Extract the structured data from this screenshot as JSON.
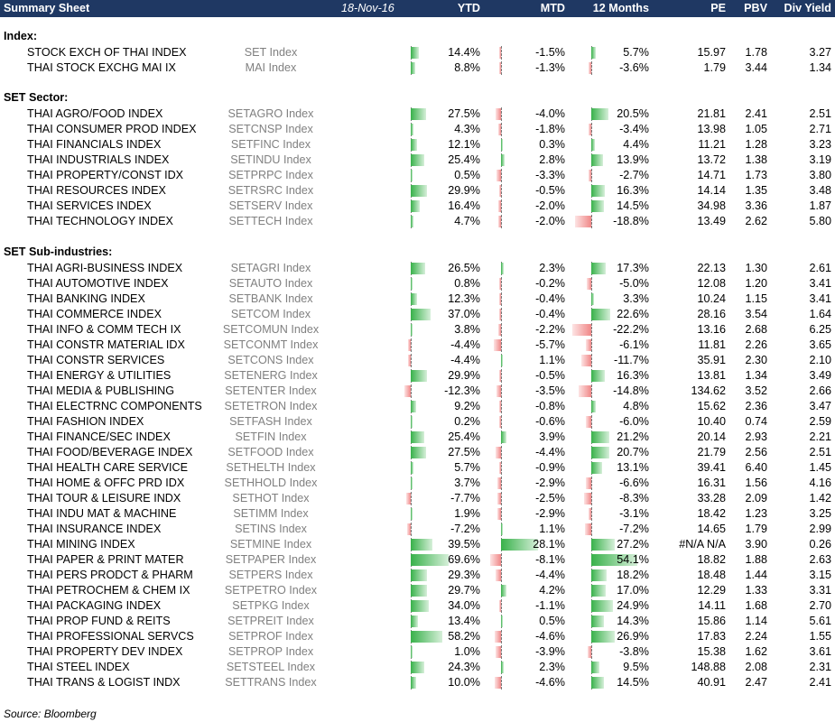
{
  "header": {
    "title": "Summary Sheet",
    "date": "18-Nov-16",
    "ytd": "YTD",
    "mtd": "MTD",
    "m12": "12 Months",
    "pe": "PE",
    "pbv": "PBV",
    "dy": "Div Yield"
  },
  "sections": [
    {
      "title": "Index:",
      "rows": [
        {
          "name": "STOCK EXCH OF THAI INDEX",
          "ticker": "SET Index",
          "ytd": "14.4%",
          "mtd": "-1.5%",
          "m12": "5.7%",
          "pe": "15.97",
          "pbv": "1.78",
          "dy": "3.27",
          "ytd_v": 14.4,
          "mtd_v": -1.5,
          "m12_v": 5.7
        },
        {
          "name": "THAI STOCK EXCHG MAI IX",
          "ticker": "MAI Index",
          "ytd": "8.8%",
          "mtd": "-1.3%",
          "m12": "-3.6%",
          "pe": "1.79",
          "pbv": "3.44",
          "dy": "1.34",
          "ytd_v": 8.8,
          "mtd_v": -1.3,
          "m12_v": -3.6
        }
      ]
    },
    {
      "title": "SET Sector:",
      "rows": [
        {
          "name": "THAI AGRO/FOOD INDEX",
          "ticker": "SETAGRO Index",
          "ytd": "27.5%",
          "mtd": "-4.0%",
          "m12": "20.5%",
          "pe": "21.81",
          "pbv": "2.41",
          "dy": "2.51",
          "ytd_v": 27.5,
          "mtd_v": -4.0,
          "m12_v": 20.5
        },
        {
          "name": "THAI CONSUMER PROD INDEX",
          "ticker": "SETCNSP Index",
          "ytd": "4.3%",
          "mtd": "-1.8%",
          "m12": "-3.4%",
          "pe": "13.98",
          "pbv": "1.05",
          "dy": "2.71",
          "ytd_v": 4.3,
          "mtd_v": -1.8,
          "m12_v": -3.4
        },
        {
          "name": "THAI FINANCIALS INDEX",
          "ticker": "SETFINC Index",
          "ytd": "12.1%",
          "mtd": "0.3%",
          "m12": "4.4%",
          "pe": "11.21",
          "pbv": "1.28",
          "dy": "3.23",
          "ytd_v": 12.1,
          "mtd_v": 0.3,
          "m12_v": 4.4
        },
        {
          "name": "THAI INDUSTRIALS INDEX",
          "ticker": "SETINDU Index",
          "ytd": "25.4%",
          "mtd": "2.8%",
          "m12": "13.9%",
          "pe": "13.72",
          "pbv": "1.38",
          "dy": "3.19",
          "ytd_v": 25.4,
          "mtd_v": 2.8,
          "m12_v": 13.9
        },
        {
          "name": "THAI PROPERTY/CONST IDX",
          "ticker": "SETPRPC Index",
          "ytd": "0.5%",
          "mtd": "-3.3%",
          "m12": "-2.7%",
          "pe": "14.71",
          "pbv": "1.73",
          "dy": "3.80",
          "ytd_v": 0.5,
          "mtd_v": -3.3,
          "m12_v": -2.7
        },
        {
          "name": "THAI RESOURCES INDEX",
          "ticker": "SETRSRC Index",
          "ytd": "29.9%",
          "mtd": "-0.5%",
          "m12": "16.3%",
          "pe": "14.14",
          "pbv": "1.35",
          "dy": "3.48",
          "ytd_v": 29.9,
          "mtd_v": -0.5,
          "m12_v": 16.3
        },
        {
          "name": "THAI SERVICES INDEX",
          "ticker": "SETSERV Index",
          "ytd": "16.4%",
          "mtd": "-2.0%",
          "m12": "14.5%",
          "pe": "34.98",
          "pbv": "3.36",
          "dy": "1.87",
          "ytd_v": 16.4,
          "mtd_v": -2.0,
          "m12_v": 14.5
        },
        {
          "name": "THAI TECHNOLOGY INDEX",
          "ticker": "SETTECH Index",
          "ytd": "4.7%",
          "mtd": "-2.0%",
          "m12": "-18.8%",
          "pe": "13.49",
          "pbv": "2.62",
          "dy": "5.80",
          "ytd_v": 4.7,
          "mtd_v": -2.0,
          "m12_v": -18.8
        }
      ]
    },
    {
      "title": "SET Sub-industries:",
      "rows": [
        {
          "name": "THAI AGRI-BUSINESS INDEX",
          "ticker": "SETAGRI Index",
          "ytd": "26.5%",
          "mtd": "2.3%",
          "m12": "17.3%",
          "pe": "22.13",
          "pbv": "1.30",
          "dy": "2.61",
          "ytd_v": 26.5,
          "mtd_v": 2.3,
          "m12_v": 17.3
        },
        {
          "name": "THAI AUTOMOTIVE INDEX",
          "ticker": "SETAUTO Index",
          "ytd": "0.8%",
          "mtd": "-0.2%",
          "m12": "-5.0%",
          "pe": "12.08",
          "pbv": "1.20",
          "dy": "3.41",
          "ytd_v": 0.8,
          "mtd_v": -0.2,
          "m12_v": -5.0
        },
        {
          "name": "THAI BANKING INDEX",
          "ticker": "SETBANK Index",
          "ytd": "12.3%",
          "mtd": "-0.4%",
          "m12": "3.3%",
          "pe": "10.24",
          "pbv": "1.15",
          "dy": "3.41",
          "ytd_v": 12.3,
          "mtd_v": -0.4,
          "m12_v": 3.3
        },
        {
          "name": "THAI COMMERCE INDEX",
          "ticker": "SETCOM Index",
          "ytd": "37.0%",
          "mtd": "-0.4%",
          "m12": "22.6%",
          "pe": "28.16",
          "pbv": "3.54",
          "dy": "1.64",
          "ytd_v": 37.0,
          "mtd_v": -0.4,
          "m12_v": 22.6
        },
        {
          "name": "THAI INFO & COMM TECH IX",
          "ticker": "SETCOMUN Index",
          "ytd": "3.8%",
          "mtd": "-2.2%",
          "m12": "-22.2%",
          "pe": "13.16",
          "pbv": "2.68",
          "dy": "6.25",
          "ytd_v": 3.8,
          "mtd_v": -2.2,
          "m12_v": -22.2
        },
        {
          "name": "THAI CONSTR MATERIAL IDX",
          "ticker": "SETCONMT Index",
          "ytd": "-4.4%",
          "mtd": "-5.7%",
          "m12": "-6.1%",
          "pe": "11.81",
          "pbv": "2.26",
          "dy": "3.65",
          "ytd_v": -4.4,
          "mtd_v": -5.7,
          "m12_v": -6.1
        },
        {
          "name": "THAI CONSTR SERVICES",
          "ticker": "SETCONS Index",
          "ytd": "-4.4%",
          "mtd": "1.1%",
          "m12": "-11.7%",
          "pe": "35.91",
          "pbv": "2.30",
          "dy": "2.10",
          "ytd_v": -4.4,
          "mtd_v": 1.1,
          "m12_v": -11.7
        },
        {
          "name": "THAI ENERGY & UTILITIES",
          "ticker": "SETENERG Index",
          "ytd": "29.9%",
          "mtd": "-0.5%",
          "m12": "16.3%",
          "pe": "13.81",
          "pbv": "1.34",
          "dy": "3.49",
          "ytd_v": 29.9,
          "mtd_v": -0.5,
          "m12_v": 16.3
        },
        {
          "name": "THAI MEDIA & PUBLISHING",
          "ticker": "SETENTER Index",
          "ytd": "-12.3%",
          "mtd": "-3.5%",
          "m12": "-14.8%",
          "pe": "134.62",
          "pbv": "3.52",
          "dy": "2.66",
          "ytd_v": -12.3,
          "mtd_v": -3.5,
          "m12_v": -14.8
        },
        {
          "name": "THAI ELECTRNC COMPONENTS",
          "ticker": "SETETRON Index",
          "ytd": "9.2%",
          "mtd": "-0.8%",
          "m12": "4.8%",
          "pe": "15.62",
          "pbv": "2.36",
          "dy": "3.47",
          "ytd_v": 9.2,
          "mtd_v": -0.8,
          "m12_v": 4.8
        },
        {
          "name": "THAI FASHION INDEX",
          "ticker": "SETFASH Index",
          "ytd": "0.2%",
          "mtd": "-0.6%",
          "m12": "-6.0%",
          "pe": "10.40",
          "pbv": "0.74",
          "dy": "2.59",
          "ytd_v": 0.2,
          "mtd_v": -0.6,
          "m12_v": -6.0
        },
        {
          "name": "THAI FINANCE/SEC INDEX",
          "ticker": "SETFIN Index",
          "ytd": "25.4%",
          "mtd": "3.9%",
          "m12": "21.2%",
          "pe": "20.14",
          "pbv": "2.93",
          "dy": "2.21",
          "ytd_v": 25.4,
          "mtd_v": 3.9,
          "m12_v": 21.2
        },
        {
          "name": "THAI FOOD/BEVERAGE INDEX",
          "ticker": "SETFOOD Index",
          "ytd": "27.5%",
          "mtd": "-4.4%",
          "m12": "20.7%",
          "pe": "21.79",
          "pbv": "2.56",
          "dy": "2.51",
          "ytd_v": 27.5,
          "mtd_v": -4.4,
          "m12_v": 20.7
        },
        {
          "name": "THAI HEALTH CARE SERVICE",
          "ticker": "SETHELTH Index",
          "ytd": "5.7%",
          "mtd": "-0.9%",
          "m12": "13.1%",
          "pe": "39.41",
          "pbv": "6.40",
          "dy": "1.45",
          "ytd_v": 5.7,
          "mtd_v": -0.9,
          "m12_v": 13.1
        },
        {
          "name": "THAI HOME & OFFC PRD IDX",
          "ticker": "SETHHOLD Index",
          "ytd": "3.7%",
          "mtd": "-2.9%",
          "m12": "-6.6%",
          "pe": "16.31",
          "pbv": "1.56",
          "dy": "4.16",
          "ytd_v": 3.7,
          "mtd_v": -2.9,
          "m12_v": -6.6
        },
        {
          "name": "THAI TOUR & LEISURE INDX",
          "ticker": "SETHOT Index",
          "ytd": "-7.7%",
          "mtd": "-2.5%",
          "m12": "-8.3%",
          "pe": "33.28",
          "pbv": "2.09",
          "dy": "1.42",
          "ytd_v": -7.7,
          "mtd_v": -2.5,
          "m12_v": -8.3
        },
        {
          "name": "THAI INDU MAT & MACHINE",
          "ticker": "SETIMM Index",
          "ytd": "1.9%",
          "mtd": "-2.9%",
          "m12": "-3.1%",
          "pe": "18.42",
          "pbv": "1.23",
          "dy": "3.25",
          "ytd_v": 1.9,
          "mtd_v": -2.9,
          "m12_v": -3.1
        },
        {
          "name": "THAI INSURANCE INDEX",
          "ticker": "SETINS Index",
          "ytd": "-7.2%",
          "mtd": "1.1%",
          "m12": "-7.2%",
          "pe": "14.65",
          "pbv": "1.79",
          "dy": "2.99",
          "ytd_v": -7.2,
          "mtd_v": 1.1,
          "m12_v": -7.2
        },
        {
          "name": "THAI MINING INDEX",
          "ticker": "SETMINE Index",
          "ytd": "39.5%",
          "mtd": "28.1%",
          "m12": "27.2%",
          "pe": "#N/A N/A",
          "pbv": "3.90",
          "dy": "0.26",
          "ytd_v": 39.5,
          "mtd_v": 28.1,
          "m12_v": 27.2
        },
        {
          "name": "THAI PAPER & PRINT MATER",
          "ticker": "SETPAPER Index",
          "ytd": "69.6%",
          "mtd": "-8.1%",
          "m12": "54.1%",
          "pe": "18.82",
          "pbv": "1.88",
          "dy": "2.63",
          "ytd_v": 69.6,
          "mtd_v": -8.1,
          "m12_v": 54.1
        },
        {
          "name": "THAI PERS PRODCT & PHARM",
          "ticker": "SETPERS Index",
          "ytd": "29.3%",
          "mtd": "-4.4%",
          "m12": "18.2%",
          "pe": "18.48",
          "pbv": "1.44",
          "dy": "3.15",
          "ytd_v": 29.3,
          "mtd_v": -4.4,
          "m12_v": 18.2
        },
        {
          "name": "THAI PETROCHEM & CHEM IX",
          "ticker": "SETPETRO Index",
          "ytd": "29.7%",
          "mtd": "4.2%",
          "m12": "17.0%",
          "pe": "12.29",
          "pbv": "1.33",
          "dy": "3.31",
          "ytd_v": 29.7,
          "mtd_v": 4.2,
          "m12_v": 17.0
        },
        {
          "name": "THAI PACKAGING INDEX",
          "ticker": "SETPKG Index",
          "ytd": "34.0%",
          "mtd": "-1.1%",
          "m12": "24.9%",
          "pe": "14.11",
          "pbv": "1.68",
          "dy": "2.70",
          "ytd_v": 34.0,
          "mtd_v": -1.1,
          "m12_v": 24.9
        },
        {
          "name": "THAI PROP FUND & REITS",
          "ticker": "SETPREIT Index",
          "ytd": "13.4%",
          "mtd": "0.5%",
          "m12": "14.3%",
          "pe": "15.86",
          "pbv": "1.14",
          "dy": "5.61",
          "ytd_v": 13.4,
          "mtd_v": 0.5,
          "m12_v": 14.3
        },
        {
          "name": "THAI PROFESSIONAL SERVCS",
          "ticker": "SETPROF Index",
          "ytd": "58.2%",
          "mtd": "-4.6%",
          "m12": "26.9%",
          "pe": "17.83",
          "pbv": "2.24",
          "dy": "1.55",
          "ytd_v": 58.2,
          "mtd_v": -4.6,
          "m12_v": 26.9
        },
        {
          "name": "THAI PROPERTY DEV INDEX",
          "ticker": "SETPROP Index",
          "ytd": "1.0%",
          "mtd": "-3.9%",
          "m12": "-3.8%",
          "pe": "15.38",
          "pbv": "1.62",
          "dy": "3.61",
          "ytd_v": 1.0,
          "mtd_v": -3.9,
          "m12_v": -3.8
        },
        {
          "name": "THAI STEEL INDEX",
          "ticker": "SETSTEEL Index",
          "ytd": "24.3%",
          "mtd": "2.3%",
          "m12": "9.5%",
          "pe": "148.88",
          "pbv": "2.08",
          "dy": "2.31",
          "ytd_v": 24.3,
          "mtd_v": 2.3,
          "m12_v": 9.5
        },
        {
          "name": "THAI TRANS & LOGIST INDX",
          "ticker": "SETTRANS Index",
          "ytd": "10.0%",
          "mtd": "-4.6%",
          "m12": "14.5%",
          "pe": "40.91",
          "pbv": "2.47",
          "dy": "2.41",
          "ytd_v": 10.0,
          "mtd_v": -4.6,
          "m12_v": 14.5
        }
      ]
    }
  ],
  "source": "Source: Bloomberg",
  "colors": {
    "header_bg": "#1f3863",
    "bar_pos": "#38b14a",
    "bar_neg": "#f08787",
    "ticker_text": "#808080"
  }
}
